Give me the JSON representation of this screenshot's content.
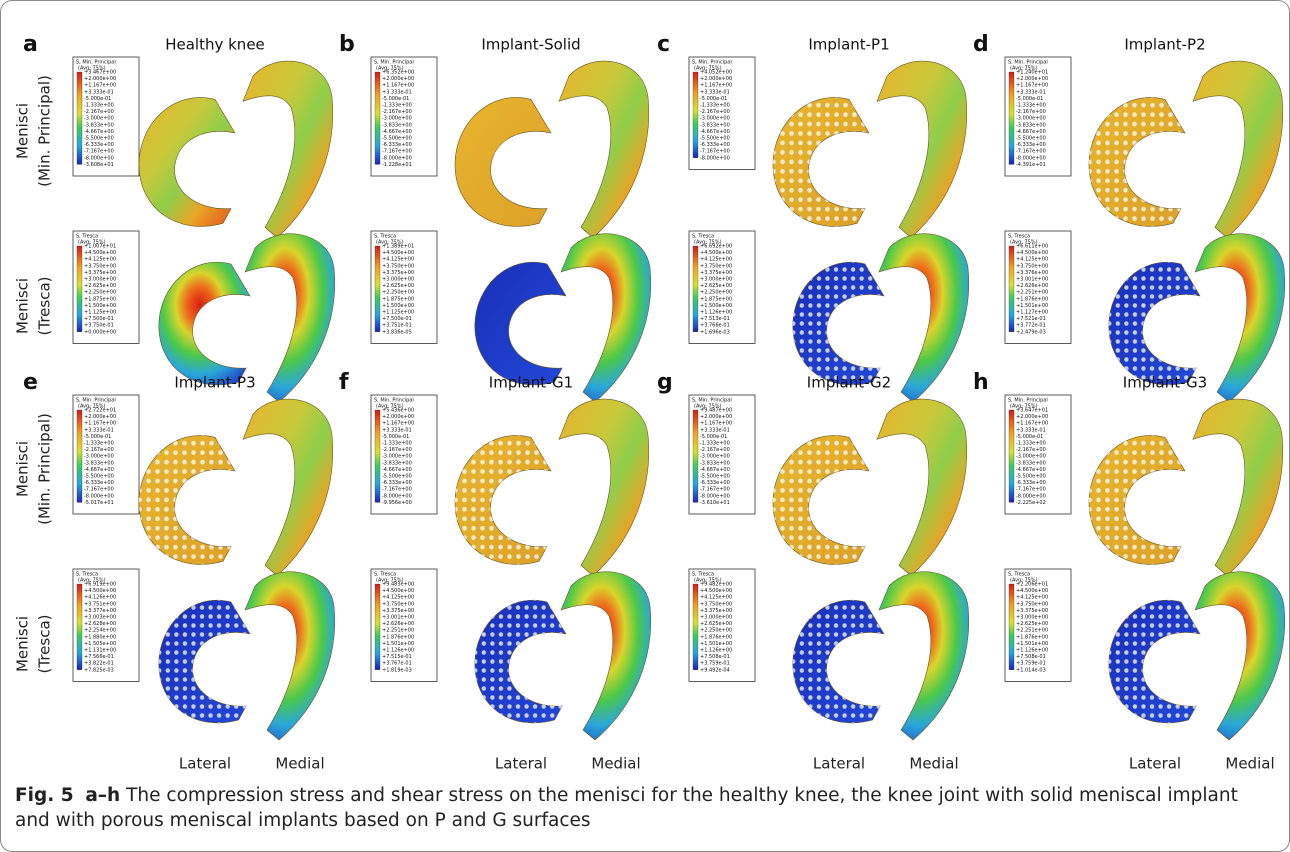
{
  "panels": [
    {
      "letter": "a",
      "title": "Healthy knee",
      "legends": [
        {
          "header": "S, Min. Principal",
          "avg": "(Avg: 75%)",
          "values": [
            "+3.467e+00",
            "+2.000e+00",
            "+1.167e+00",
            "+3.333e-01",
            "-5.000e-01",
            "-1.333e+00",
            "-2.167e+00",
            "-3.000e+00",
            "-3.833e+00",
            "-4.667e+00",
            "-5.500e+00",
            "-6.333e+00",
            "-7.167e+00",
            "-8.000e+00",
            "-3.608e+01"
          ]
        },
        {
          "header": "S, Tresca",
          "avg": "(Avg: 75%)",
          "values": [
            "+1.007e+01",
            "+4.500e+00",
            "+4.125e+00",
            "+3.750e+00",
            "+3.375e+00",
            "+3.000e+00",
            "+2.625e+00",
            "+2.250e+00",
            "+1.875e+00",
            "+1.500e+00",
            "+1.125e+00",
            "+7.500e-01",
            "+3.750e-01",
            "+0.000e+00"
          ]
        }
      ]
    },
    {
      "letter": "b",
      "title": "Implant-Solid",
      "legends": [
        {
          "header": "S, Min. Principal",
          "avg": "(Avg: 75%)",
          "values": [
            "+6.352e+00",
            "+2.000e+00",
            "+1.167e+00",
            "+3.333e-01",
            "-5.000e-01",
            "-1.333e+00",
            "-2.167e+00",
            "-3.000e+00",
            "-3.833e+00",
            "-4.667e+00",
            "-5.500e+00",
            "-6.333e+00",
            "-7.167e+00",
            "-8.000e+00",
            "-1.228e+01"
          ]
        },
        {
          "header": "S, Tresca",
          "avg": "(Avg: 75%)",
          "values": [
            "+1.389e+01",
            "+4.500e+00",
            "+4.125e+00",
            "+3.750e+00",
            "+3.375e+00",
            "+3.000e+00",
            "+2.625e+00",
            "+2.250e+00",
            "+1.875e+00",
            "+1.500e+00",
            "+1.125e+00",
            "+7.500e-01",
            "+3.751e-01",
            "+3.836e-05"
          ]
        }
      ]
    },
    {
      "letter": "c",
      "title": "Implant-P1",
      "legends": [
        {
          "header": "S, Min. Principal",
          "avg": "(Avg: 75%)",
          "values": [
            "+4.052e+00",
            "+2.000e+00",
            "+1.167e+00",
            "+3.333e-01",
            "-5.000e-01",
            "-1.333e+00",
            "-2.167e+00",
            "-3.000e+00",
            "-3.833e+00",
            "-4.667e+00",
            "-5.500e+00",
            "-6.333e+00",
            "-7.167e+00",
            "-8.000e+00"
          ]
        },
        {
          "header": "S, Tresca",
          "avg": "(Avg: 75%)",
          "values": [
            "+6.692e+00",
            "+4.500e+00",
            "+4.125e+00",
            "+3.750e+00",
            "+3.375e+00",
            "+3.000e+00",
            "+2.625e+00",
            "+2.250e+00",
            "+1.875e+00",
            "+1.500e+00",
            "+1.126e+00",
            "+7.513e-01",
            "+3.766e-01",
            "+1.696e-03"
          ]
        }
      ]
    },
    {
      "letter": "d",
      "title": "Implant-P2",
      "legends": [
        {
          "header": "S, Min. Principal",
          "avg": "(Avg: 75%)",
          "values": [
            "+1.240e+01",
            "+2.000e+00",
            "+1.167e+00",
            "+3.333e-01",
            "-5.000e-01",
            "-1.333e+00",
            "-2.167e+00",
            "-3.000e+00",
            "-3.833e+00",
            "-4.667e+00",
            "-5.500e+00",
            "-6.333e+00",
            "-7.167e+00",
            "-8.000e+00",
            "-4.391e+01"
          ]
        },
        {
          "header": "S, Tresca",
          "avg": "(Avg: 75%)",
          "values": [
            "+6.611e+00",
            "+4.500e+00",
            "+4.125e+00",
            "+3.750e+00",
            "+3.376e+00",
            "+3.001e+00",
            "+2.626e+00",
            "+2.251e+00",
            "+1.876e+00",
            "+1.501e+00",
            "+1.127e+00",
            "+7.521e-01",
            "+3.772e-01",
            "+2.479e-03"
          ]
        }
      ]
    },
    {
      "letter": "e",
      "title": "Implant-P3",
      "legends": [
        {
          "header": "S, Min. Principal",
          "avg": "(Avg: 75%)",
          "values": [
            "+2.722e+01",
            "+2.000e+00",
            "+1.167e+00",
            "+3.333e-01",
            "-5.000e-01",
            "-1.333e+00",
            "-2.167e+00",
            "-3.000e+00",
            "-3.833e+00",
            "-4.667e+00",
            "-5.500e+00",
            "-6.333e+00",
            "-7.167e+00",
            "-8.000e+00",
            "-5.017e+01"
          ]
        },
        {
          "header": "S, Tresca",
          "avg": "(Avg: 75%)",
          "values": [
            "+6.919e+00",
            "+4.500e+00",
            "+4.126e+00",
            "+3.751e+00",
            "+3.377e+00",
            "+3.003e+00",
            "+2.628e+00",
            "+2.254e+00",
            "+1.880e+00",
            "+1.505e+00",
            "+1.131e+00",
            "+7.566e-01",
            "+3.822e-01",
            "+7.825e-03"
          ]
        }
      ]
    },
    {
      "letter": "f",
      "title": "Implant-G1",
      "legends": [
        {
          "header": "S, Min. Principal",
          "avg": "(Avg: 75%)",
          "values": [
            "+5.436e+00",
            "+2.000e+00",
            "+1.167e+00",
            "+3.333e-01",
            "-5.000e-01",
            "-1.333e+00",
            "-2.167e+00",
            "-3.000e+00",
            "-3.833e+00",
            "-4.667e+00",
            "-5.500e+00",
            "-6.333e+00",
            "-7.167e+00",
            "-8.000e+00",
            "-9.956e+00"
          ]
        },
        {
          "header": "S, Tresca",
          "avg": "(Avg: 75%)",
          "values": [
            "+9.483e+00",
            "+4.500e+00",
            "+4.125e+00",
            "+3.750e+00",
            "+3.375e+00",
            "+3.001e+00",
            "+2.626e+00",
            "+2.251e+00",
            "+1.876e+00",
            "+1.501e+00",
            "+1.126e+00",
            "+7.515e-01",
            "+3.767e-01",
            "+1.819e-03"
          ]
        }
      ]
    },
    {
      "letter": "g",
      "title": "Implant-G2",
      "legends": [
        {
          "header": "S, Min. Principal",
          "avg": "(Avg: 75%)",
          "values": [
            "+9.487e+00",
            "+2.000e+00",
            "+1.167e+00",
            "+3.333e-01",
            "-5.000e-01",
            "-1.333e+00",
            "-2.167e+00",
            "-3.000e+00",
            "-3.833e+00",
            "-4.667e+00",
            "-5.500e+00",
            "-6.333e+00",
            "-7.167e+00",
            "-8.000e+00",
            "-3.610e+01"
          ]
        },
        {
          "header": "S, Tresca",
          "avg": "(Avg: 75%)",
          "values": [
            "+9.482e+00",
            "+4.500e+00",
            "+4.125e+00",
            "+3.750e+00",
            "+3.375e+00",
            "+3.000e+00",
            "+2.625e+00",
            "+2.250e+00",
            "+1.876e+00",
            "+1.501e+00",
            "+1.126e+00",
            "+7.508e-01",
            "+3.759e-01",
            "+9.492e-04"
          ]
        }
      ]
    },
    {
      "letter": "h",
      "title": "Implant-G3",
      "legends": [
        {
          "header": "S, Min. Principal",
          "avg": "(Avg: 75%)",
          "values": [
            "+3.647e+01",
            "+2.000e+00",
            "+1.167e+00",
            "+3.333e-01",
            "-5.000e-01",
            "-1.333e+00",
            "-2.167e+00",
            "-3.000e+00",
            "-3.833e+00",
            "-4.667e+00",
            "-5.500e+00",
            "-6.333e+00",
            "-7.167e+00",
            "-8.000e+00",
            "-2.225e+02"
          ]
        },
        {
          "header": "S, Tresca",
          "avg": "(Avg: 75%)",
          "values": [
            "+2.206e+01",
            "+4.500e+00",
            "+4.125e+00",
            "+3.750e+00",
            "+3.375e+00",
            "+3.000e+00",
            "+2.625e+00",
            "+2.251e+00",
            "+1.876e+00",
            "+1.501e+00",
            "+1.126e+00",
            "+7.508e-01",
            "+3.759e-01",
            "+1.014e-03"
          ]
        }
      ]
    }
  ],
  "row_labels": [
    {
      "line1": "Menisci",
      "line2": "(Min. Principal)"
    },
    {
      "line1": "Menisci",
      "line2": "(Tresca)"
    }
  ],
  "bottom_labels": [
    {
      "lateral": "Lateral",
      "medial": "Medial"
    },
    {
      "lateral": "Lateral",
      "medial": "Medial"
    },
    {
      "lateral": "Lateral",
      "medial": "Medial"
    },
    {
      "lateral": "Lateral",
      "medial": "Medial"
    }
  ],
  "caption": {
    "fig": "Fig. 5",
    "range": "a–h",
    "text": "The compression stress and shear stress on the menisci for the healthy knee, the knee joint with solid meniscal implant and with porous meniscal implants based on P and G surfaces"
  }
}
